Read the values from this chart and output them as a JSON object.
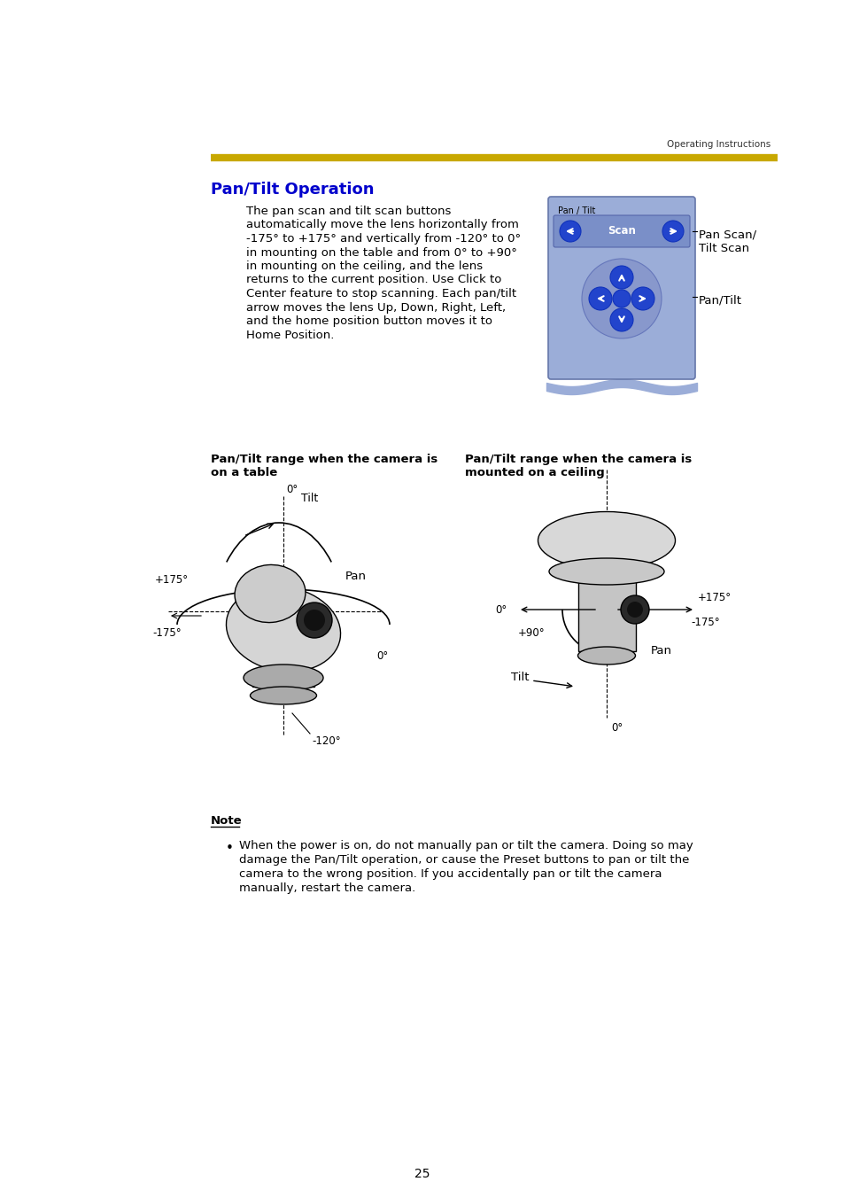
{
  "background_color": "#ffffff",
  "page_number": "25",
  "header_text": "Operating Instructions",
  "gold_bar_color": "#C8A800",
  "title": "Pan/Tilt Operation",
  "title_color": "#0000CC",
  "title_fontsize": 13,
  "body_text_lines": [
    "The pan scan and tilt scan buttons",
    "automatically move the lens horizontally from",
    "-175° to +175° and vertically from -120° to 0°",
    "in mounting on the table and from 0° to +90°",
    "in mounting on the ceiling, and the lens",
    "returns to the current position. Use Click to",
    "Center feature to stop scanning. Each pan/tilt",
    "arrow moves the lens Up, Down, Right, Left,",
    "and the home position button moves it to",
    "Home Position."
  ],
  "body_fontsize": 9.5,
  "label_pan_scan": "Pan Scan/\nTilt Scan",
  "label_pan_tilt": "Pan/Tilt",
  "caption_left_lines": [
    "Pan/Tilt range when the camera is",
    "on a table"
  ],
  "caption_right_lines": [
    "Pan/Tilt range when the camera is",
    "mounted on a ceiling"
  ],
  "caption_fontsize": 9.5,
  "note_title": "Note",
  "note_text_lines": [
    "When the power is on, do not manually pan or tilt the camera. Doing so may",
    "damage the Pan/Tilt operation, or cause the Preset buttons to pan or tilt the",
    "camera to the wrong position. If you accidentally pan or tilt the camera",
    "manually, restart the camera."
  ],
  "note_fontsize": 9.5
}
